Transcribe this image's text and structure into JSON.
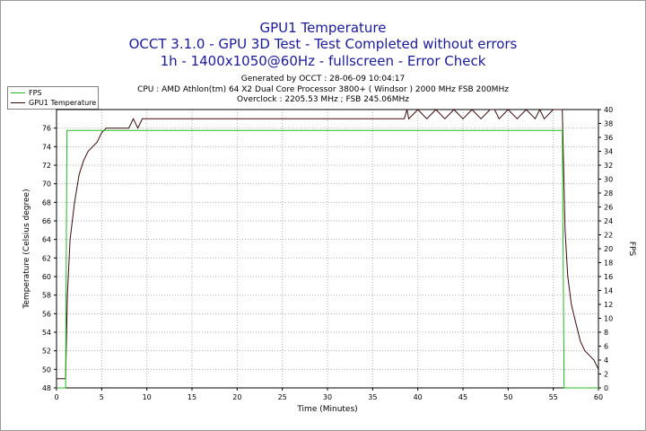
{
  "titles": {
    "line1": "GPU1 Temperature",
    "line2": "OCCT 3.1.0 - GPU 3D Test - Test Completed without errors",
    "line3": "1h - 1400x1050@60Hz - fullscreen - Error Check"
  },
  "info": {
    "generated": "Generated by OCCT : 28-06-09 10:04:17",
    "cpu": "CPU : AMD Athlon(tm) 64 X2 Dual Core Processor 3800+ ( Windsor ) 2000 MHz FSB 200MHz",
    "overclock": "Overclock : 2205.53 MHz ; FSB 245.06MHz"
  },
  "legend": [
    {
      "label": "FPS",
      "color": "#22bb22"
    },
    {
      "label": "GPU1 Temperature",
      "color": "#3a0a0a"
    }
  ],
  "colors": {
    "fps": "#22bb22",
    "temperature": "#3a0a0a",
    "grid": "#b0b0b0",
    "title": "#1a1a9a"
  },
  "chart_data": {
    "type": "line",
    "xlabel": "Time (Minutes)",
    "ylabel": "Temperature (Celsius degree)",
    "y2label": "FPS",
    "xlim": [
      0,
      60
    ],
    "ylim": [
      48,
      78
    ],
    "y2lim": [
      0,
      40
    ],
    "x_ticks": [
      0,
      5,
      10,
      15,
      20,
      25,
      30,
      35,
      40,
      45,
      50,
      55,
      60
    ],
    "y_ticks": [
      48,
      50,
      52,
      54,
      56,
      58,
      60,
      62,
      64,
      66,
      68,
      70,
      72,
      74,
      76
    ],
    "y2_ticks": [
      0,
      2,
      4,
      6,
      8,
      10,
      12,
      14,
      16,
      18,
      20,
      22,
      24,
      26,
      28,
      30,
      32,
      34,
      36,
      38,
      40
    ],
    "grid": true,
    "legend_position": "top-left",
    "series": [
      {
        "name": "GPU1 Temperature",
        "axis": "left",
        "x": [
          0,
          1,
          1.2,
          1.5,
          2,
          2.5,
          3,
          3.5,
          4,
          4.5,
          5,
          5.5,
          6,
          7,
          8,
          8.5,
          9,
          9.5,
          10,
          12,
          15,
          20,
          25,
          30,
          35,
          38.5,
          38.8,
          39,
          40,
          41,
          42,
          43,
          44,
          45,
          46,
          47,
          48,
          48.5,
          49,
          50,
          51,
          52,
          53,
          53.5,
          54,
          55,
          55.5,
          56,
          56.3,
          56.6,
          57,
          57.5,
          58,
          58.5,
          59,
          59.5,
          60
        ],
        "y": [
          49,
          49,
          58,
          64,
          68,
          71,
          72.5,
          73.5,
          74,
          74.5,
          75.5,
          76,
          76,
          76,
          76,
          77,
          76,
          77,
          77,
          77,
          77,
          77,
          77,
          77,
          77,
          77,
          78,
          77,
          78,
          77,
          78,
          77,
          78,
          77,
          78,
          77,
          78,
          78,
          77,
          78,
          77,
          78,
          77,
          78,
          77,
          78,
          78,
          78,
          65,
          60,
          57,
          55,
          53,
          52,
          51.5,
          51,
          50
        ]
      },
      {
        "name": "FPS",
        "axis": "right",
        "x": [
          0,
          1,
          1.15,
          2,
          5,
          10,
          15,
          20,
          25,
          30,
          35,
          40,
          45,
          50,
          55,
          56,
          56.2,
          60
        ],
        "y": [
          0,
          0,
          37,
          37,
          37,
          37,
          37,
          37,
          37,
          37,
          37,
          37,
          37,
          37,
          37,
          37,
          0,
          0
        ]
      }
    ]
  }
}
